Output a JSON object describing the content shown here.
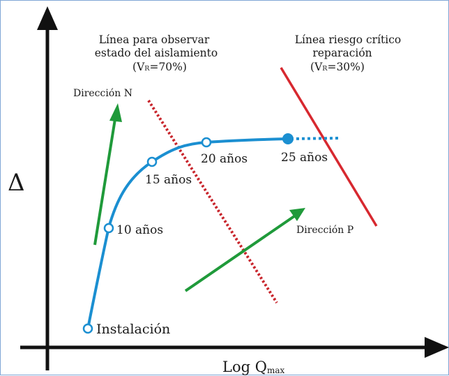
{
  "diagram": {
    "y_axis_label": "Δ",
    "x_axis_label_main": "Log Q",
    "x_axis_label_sub": "max",
    "line_observe": {
      "line1": "Línea para observar",
      "line2": "estado del aislamiento",
      "line3_main": "(V",
      "line3_sub": "R",
      "line3_tail": "=70%)",
      "color": "#c8242b"
    },
    "line_critical": {
      "line1": "Línea riesgo crítico",
      "line2": "reparación",
      "line3_main": "(V",
      "line3_sub": "R",
      "line3_tail": "=30%)",
      "color": "#d7282f"
    },
    "direction_n": "Dirección N",
    "direction_p": "Dirección P",
    "arrow_color": "#1f9a3a",
    "curve_color": "#1b8fd1",
    "points": [
      {
        "label": "Instalación"
      },
      {
        "label": "10 años"
      },
      {
        "label": "15 años"
      },
      {
        "label": "20 años"
      },
      {
        "label": "25 años"
      }
    ]
  }
}
